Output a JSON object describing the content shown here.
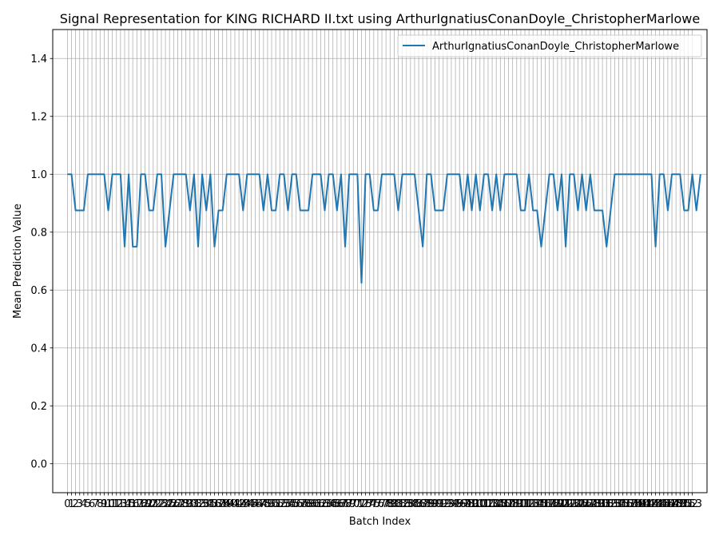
{
  "chart_data": {
    "type": "line",
    "title": "Signal Representation for KING RICHARD II.txt using ArthurIgnatiusConanDoyle_ChristopherMarlowe",
    "xlabel": "Batch Index",
    "ylabel": "Mean Prediction Value",
    "xlim": [
      -3.6,
      156.6
    ],
    "ylim": [
      -0.1,
      1.5
    ],
    "yticks": [
      0.0,
      0.2,
      0.4,
      0.6,
      0.8,
      1.0,
      1.2,
      1.4
    ],
    "ytick_labels": [
      "0.0",
      "0.2",
      "0.4",
      "0.6",
      "0.8",
      "1.0",
      "1.2",
      "1.4"
    ],
    "xtick_count": 154,
    "xtick_labels": [
      "0",
      "1",
      "2",
      "3",
      "4",
      "5",
      "6",
      "7",
      "8",
      "9",
      "10",
      "11",
      "12",
      "13",
      "14",
      "15",
      "16",
      "17",
      "18",
      "19",
      "20",
      "21",
      "22",
      "23",
      "24",
      "25",
      "26",
      "27",
      "28",
      "29",
      "30",
      "31",
      "32",
      "33",
      "34",
      "35",
      "36",
      "37",
      "38",
      "39",
      "40",
      "41",
      "42",
      "43",
      "44",
      "45",
      "46",
      "47",
      "48",
      "49",
      "50",
      "51",
      "52",
      "53",
      "54",
      "55",
      "56",
      "57",
      "58",
      "59",
      "60",
      "61",
      "62",
      "63",
      "64",
      "65",
      "66",
      "67",
      "68",
      "69",
      "70",
      "71",
      "72",
      "73",
      "74",
      "75",
      "76",
      "77",
      "78",
      "79",
      "80",
      "81",
      "82",
      "83",
      "84",
      "85",
      "86",
      "87",
      "88",
      "89",
      "90",
      "91",
      "92",
      "93",
      "94",
      "95",
      "96",
      "97",
      "98",
      "99",
      "100",
      "101",
      "102",
      "103",
      "104",
      "105",
      "106",
      "107",
      "108",
      "109",
      "110",
      "111",
      "112",
      "113",
      "114",
      "115",
      "116",
      "117",
      "118",
      "119",
      "120",
      "121",
      "122",
      "123",
      "124",
      "125",
      "126",
      "127",
      "128",
      "129",
      "130",
      "131",
      "132",
      "133",
      "134",
      "135",
      "136",
      "137",
      "138",
      "139",
      "140",
      "141",
      "142",
      "143",
      "144",
      "145",
      "146",
      "147",
      "148",
      "149",
      "150",
      "151",
      "152",
      "153"
    ],
    "grid": true,
    "legend_position": "upper right",
    "series": [
      {
        "name": "ArthurIgnatiusConanDoyle_ChristopherMarlowe",
        "color": "#1f77b4",
        "values": [
          1.0,
          1.0,
          0.875,
          0.875,
          0.875,
          1.0,
          1.0,
          1.0,
          1.0,
          1.0,
          0.875,
          1.0,
          1.0,
          1.0,
          0.75,
          1.0,
          0.75,
          0.75,
          1.0,
          1.0,
          0.875,
          0.875,
          1.0,
          1.0,
          0.75,
          0.875,
          1.0,
          1.0,
          1.0,
          1.0,
          0.875,
          1.0,
          0.75,
          1.0,
          0.875,
          1.0,
          0.75,
          0.875,
          0.875,
          1.0,
          1.0,
          1.0,
          1.0,
          0.875,
          1.0,
          1.0,
          1.0,
          1.0,
          0.875,
          1.0,
          0.875,
          0.875,
          1.0,
          1.0,
          0.875,
          1.0,
          1.0,
          0.875,
          0.875,
          0.875,
          1.0,
          1.0,
          1.0,
          0.875,
          1.0,
          1.0,
          0.875,
          1.0,
          0.75,
          1.0,
          1.0,
          1.0,
          0.625,
          1.0,
          1.0,
          0.875,
          0.875,
          1.0,
          1.0,
          1.0,
          1.0,
          0.875,
          1.0,
          1.0,
          1.0,
          1.0,
          0.875,
          0.75,
          1.0,
          1.0,
          0.875,
          0.875,
          0.875,
          1.0,
          1.0,
          1.0,
          1.0,
          0.875,
          1.0,
          0.875,
          1.0,
          0.875,
          1.0,
          1.0,
          0.875,
          1.0,
          0.875,
          1.0,
          1.0,
          1.0,
          1.0,
          0.875,
          0.875,
          1.0,
          0.875,
          0.875,
          0.75,
          0.875,
          1.0,
          1.0,
          0.875,
          1.0,
          0.75,
          1.0,
          1.0,
          0.875,
          1.0,
          0.875,
          1.0,
          0.875,
          0.875,
          0.875,
          0.75,
          0.875,
          1.0,
          1.0,
          1.0,
          1.0,
          1.0,
          1.0,
          1.0,
          1.0,
          1.0,
          1.0,
          0.75,
          1.0,
          1.0,
          0.875,
          1.0,
          1.0,
          1.0,
          0.875,
          0.875,
          1.0,
          0.875,
          1.0
        ]
      }
    ]
  }
}
